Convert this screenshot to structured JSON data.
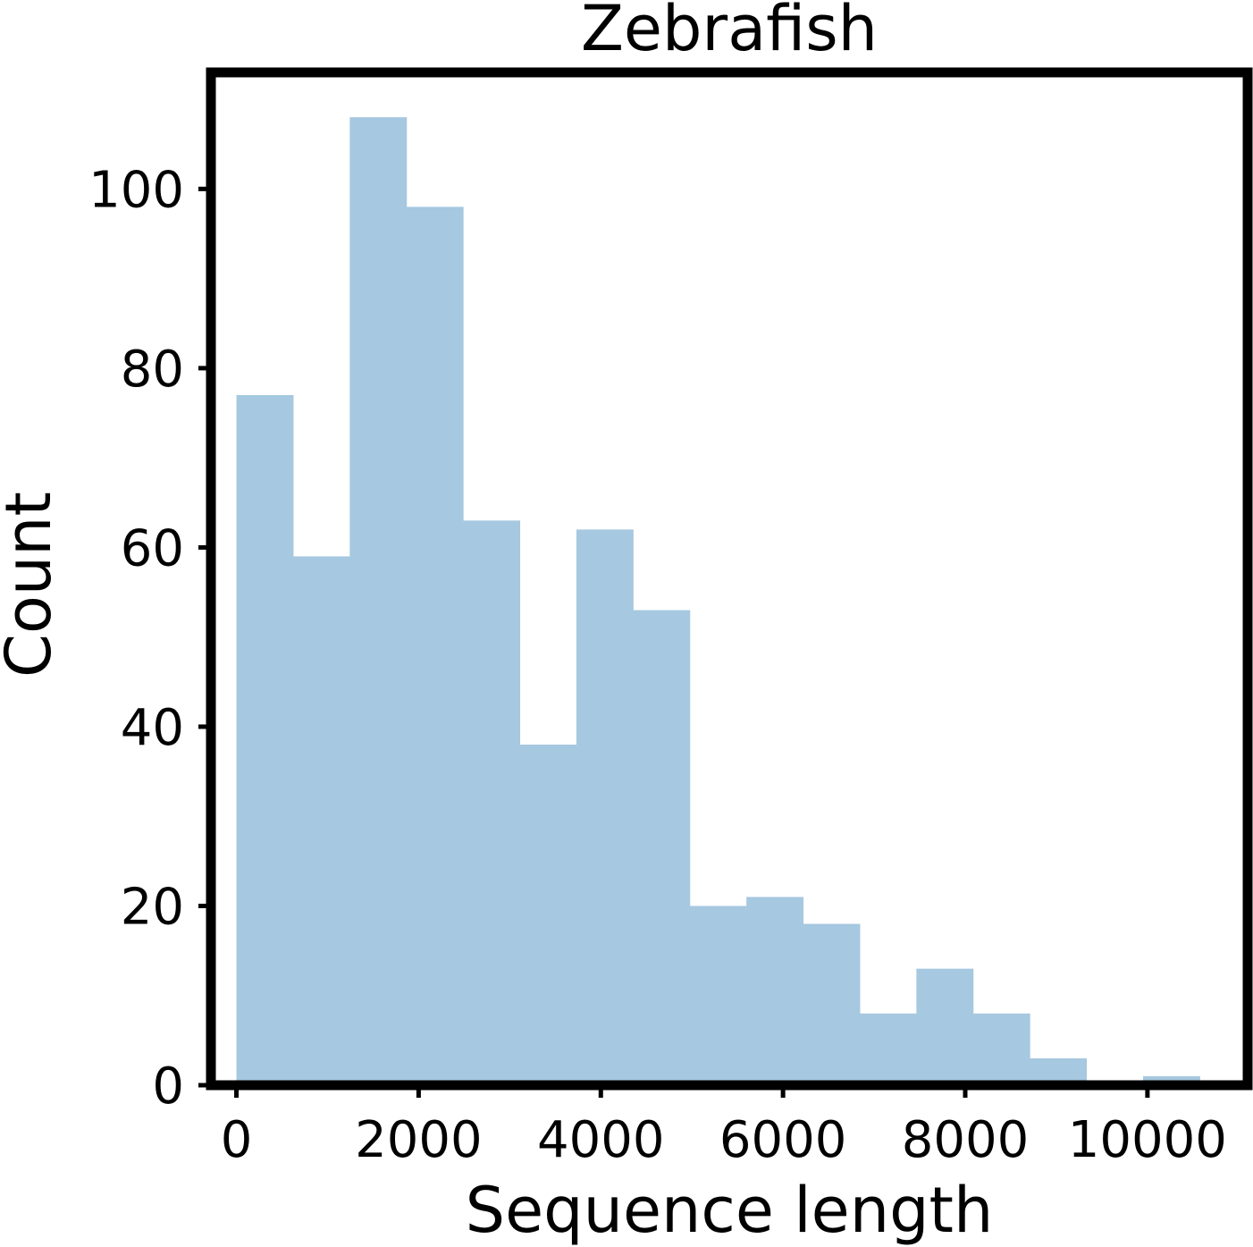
{
  "chart_data": {
    "type": "bar",
    "title": "Zebrafish",
    "xlabel": "Sequence length",
    "ylabel": "Count",
    "bar_color": "#a6c8e0",
    "frame_color": "#000000",
    "grid": false,
    "xlim": [
      -280,
      11100
    ],
    "ylim": [
      0,
      113
    ],
    "x_ticks": [
      0,
      2000,
      4000,
      6000,
      8000,
      10000
    ],
    "x_tick_labels": [
      "0",
      "2000",
      "4000",
      "6000",
      "8000",
      "10000"
    ],
    "y_ticks": [
      0,
      20,
      40,
      60,
      80,
      100
    ],
    "y_tick_labels": [
      "0",
      "20",
      "40",
      "60",
      "80",
      "100"
    ],
    "bins": [
      {
        "x0": 0,
        "x1": 622,
        "count": 77
      },
      {
        "x0": 622,
        "x1": 1244,
        "count": 59
      },
      {
        "x0": 1244,
        "x1": 1866,
        "count": 108
      },
      {
        "x0": 1866,
        "x1": 2488,
        "count": 98
      },
      {
        "x0": 2488,
        "x1": 3110,
        "count": 63
      },
      {
        "x0": 3110,
        "x1": 3732,
        "count": 38
      },
      {
        "x0": 3732,
        "x1": 4354,
        "count": 62
      },
      {
        "x0": 4354,
        "x1": 4976,
        "count": 53
      },
      {
        "x0": 4976,
        "x1": 5598,
        "count": 20
      },
      {
        "x0": 5598,
        "x1": 6220,
        "count": 21
      },
      {
        "x0": 6220,
        "x1": 6842,
        "count": 18
      },
      {
        "x0": 6842,
        "x1": 7464,
        "count": 8
      },
      {
        "x0": 7464,
        "x1": 8086,
        "count": 13
      },
      {
        "x0": 8086,
        "x1": 8708,
        "count": 8
      },
      {
        "x0": 8708,
        "x1": 9330,
        "count": 3
      },
      {
        "x0": 9330,
        "x1": 9952,
        "count": 0
      },
      {
        "x0": 9952,
        "x1": 10574,
        "count": 1
      }
    ]
  }
}
